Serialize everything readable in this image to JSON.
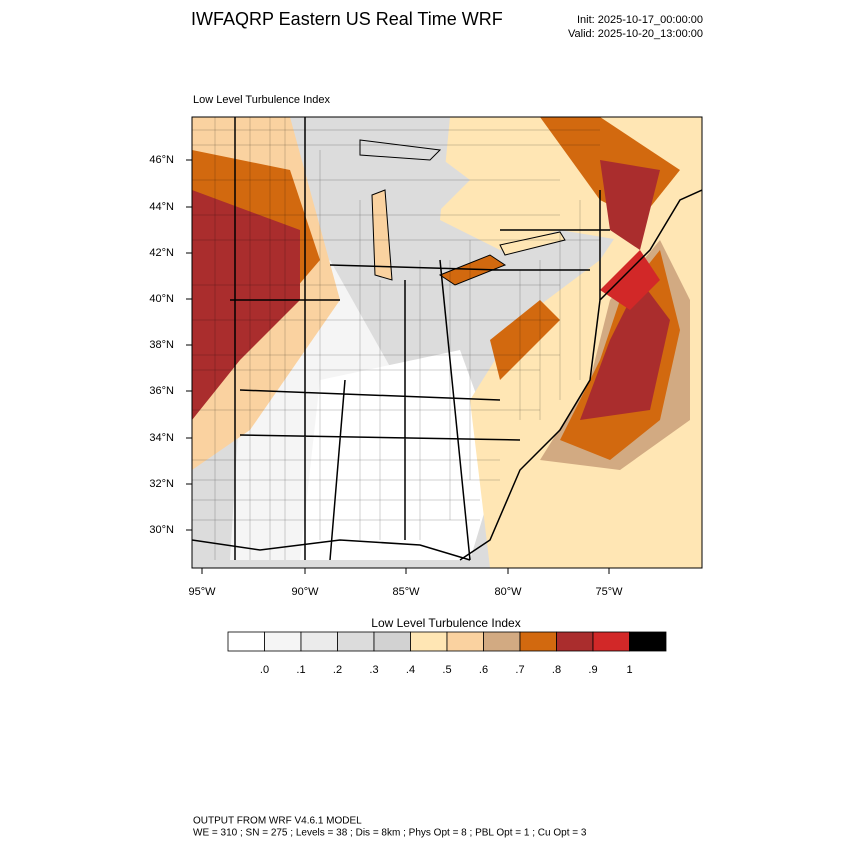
{
  "header": {
    "title": "IWFAQRP Eastern US Real Time WRF",
    "init": "Init: 2025-10-17_00:00:00",
    "valid": "Valid: 2025-10-20_13:00:00"
  },
  "map": {
    "subtitle": "Low Level Turbulence Index",
    "lat_labels": [
      "46°N",
      "44°N",
      "42°N",
      "40°N",
      "38°N",
      "36°N",
      "34°N",
      "32°N",
      "30°N"
    ],
    "lon_labels": [
      "95°W",
      "90°W",
      "85°W",
      "80°W",
      "75°W"
    ]
  },
  "colorbar": {
    "title": "Low Level Turbulence Index",
    "colors": [
      "#ffffff",
      "#f5f5f5",
      "#ebebeb",
      "#dcdcdc",
      "#d2d2d2",
      "#ffe6b4",
      "#fad2a0",
      "#d2aa82",
      "#d2690f",
      "#aa2d2d",
      "#d22828",
      "#000000"
    ],
    "labels": [
      ".0",
      ".1",
      ".2",
      ".3",
      ".4",
      ".5",
      ".6",
      ".7",
      ".8",
      ".9",
      "1"
    ]
  },
  "footer": {
    "lines": [
      "OUTPUT FROM WRF V4.6.1 MODEL",
      "WE = 310 ; SN = 275 ; Levels = 38 ; Dis = 8km ; Phys Opt = 8 ; PBL Opt = 1 ; Cu Opt = 3"
    ]
  }
}
